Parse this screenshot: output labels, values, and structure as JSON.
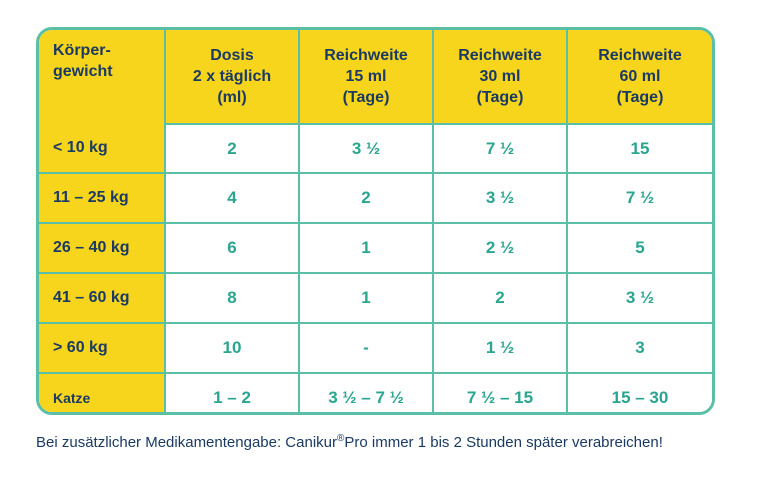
{
  "colors": {
    "header_bg": "#f7d51d",
    "border": "#5bbfa8",
    "header_text": "#1a3a63",
    "value_text": "#2aa590"
  },
  "table": {
    "headers": [
      [
        "Körper-",
        "gewicht"
      ],
      [
        "Dosis",
        "2 x täglich",
        "(ml)"
      ],
      [
        "Reichweite",
        "15 ml",
        "(Tage)"
      ],
      [
        "Reichweite",
        "30 ml",
        "(Tage)"
      ],
      [
        "Reichweite",
        "60 ml",
        "(Tage)"
      ]
    ],
    "rows": [
      {
        "label": "< 10 kg",
        "cells": [
          "2",
          "3 ½",
          "7 ½",
          "15"
        ]
      },
      {
        "label": "11 – 25 kg",
        "cells": [
          "4",
          "2",
          "3 ½",
          "7 ½"
        ]
      },
      {
        "label": "26 – 40 kg",
        "cells": [
          "6",
          "1",
          "2 ½",
          "5"
        ]
      },
      {
        "label": "41 – 60 kg",
        "cells": [
          "8",
          "1",
          "2",
          "3 ½"
        ]
      },
      {
        "label": "> 60 kg",
        "cells": [
          "10",
          "-",
          "1 ½",
          "3"
        ]
      },
      {
        "label": "Katze",
        "cells": [
          "1 – 2",
          "3 ½ – 7 ½",
          "7 ½ – 15",
          "15 – 30"
        ]
      }
    ]
  },
  "note": {
    "before": "Bei zusätzlicher Medikamentengabe: Canikur",
    "mark": "®",
    "after": "Pro immer 1 bis 2 Stunden später verabreichen!"
  }
}
